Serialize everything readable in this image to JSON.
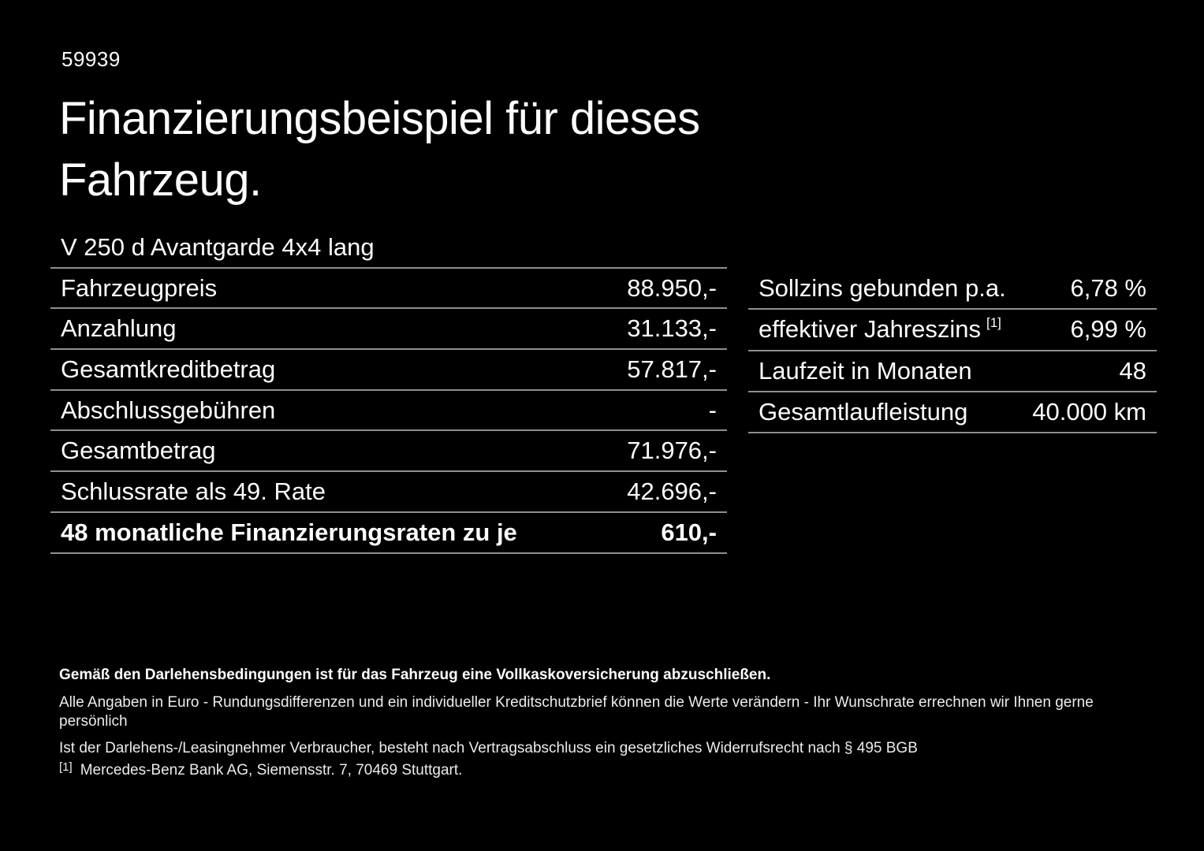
{
  "page": {
    "doc_number": "59939",
    "title_line1": "Finanzierungsbeispiel für dieses",
    "title_line2": "Fahrzeug.",
    "vehicle_model": "V 250 d Avantgarde 4x4 lang"
  },
  "finance_table": {
    "rows": [
      {
        "label": "Fahrzeugpreis",
        "value": "88.950,-"
      },
      {
        "label": "Anzahlung",
        "value": "31.133,-"
      },
      {
        "label": "Gesamtkreditbetrag",
        "value": "57.817,-"
      },
      {
        "label": "Abschlussgebühren",
        "value": "-"
      },
      {
        "label": "Gesamtbetrag",
        "value": "71.976,-"
      },
      {
        "label": "Schlussrate als 49. Rate",
        "value": "42.696,-"
      },
      {
        "label": "48 monatliche Finanzierungsraten zu je",
        "value": "610,-"
      }
    ]
  },
  "conditions_table": {
    "rows": [
      {
        "label": "Sollzins gebunden p.a.",
        "value": "6,78 %"
      },
      {
        "label": "effektiver Jahreszins",
        "superscript": "[1]",
        "value": "6,99 %"
      },
      {
        "label": "Laufzeit in Monaten",
        "value": "48"
      },
      {
        "label": "Gesamtlaufleistung",
        "value": "40.000 km"
      }
    ]
  },
  "fineprint": {
    "insurance_note": "Gemäß den Darlehensbedingungen ist für das Fahrzeug eine Vollkaskoversicherung abzuschließen.",
    "disclaimer": "Alle Angaben in Euro - Rundungsdifferenzen und ein individueller Kreditschutzbrief können die Werte verändern - Ihr Wunschrate errechnen wir Ihnen gerne persönlich",
    "withdrawal_note": "Ist der Darlehens-/Leasingnehmer Verbraucher, besteht nach Vertragsabschluss ein gesetzliches Widerrufsrecht nach § 495 BGB",
    "ref_marker": "[1]",
    "ref_text": "Mercedes-Benz Bank AG, Siemensstr. 7, 70469 Stuttgart."
  },
  "colors": {
    "background": "#000000",
    "text": "#ffffff",
    "divider": "#8f8f8f"
  }
}
